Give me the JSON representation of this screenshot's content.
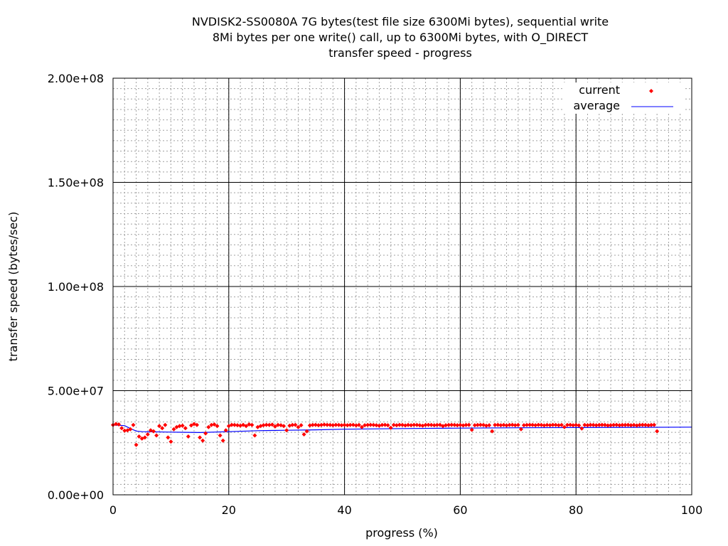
{
  "chart_data": {
    "type": "scatter",
    "title_lines": [
      "NVDISK2-SS0080A 7G bytes(test file size 6300Mi bytes), sequential write",
      "8Mi bytes per one write() call, up to 6300Mi bytes, with O_DIRECT",
      "transfer speed - progress"
    ],
    "xlabel": "progress (%)",
    "ylabel": "transfer speed (bytes/sec)",
    "xlim": [
      0,
      100
    ],
    "ylim": [
      0,
      200000000
    ],
    "x_ticks": [
      0,
      20,
      40,
      60,
      80,
      100
    ],
    "x_tick_labels": [
      "0",
      "20",
      "40",
      "60",
      "80",
      "100"
    ],
    "y_ticks": [
      0,
      50000000,
      100000000,
      150000000,
      200000000
    ],
    "y_tick_labels": [
      "0.00e+00",
      "5.00e+07",
      "1.00e+08",
      "1.50e+08",
      "2.00e+08"
    ],
    "x_minor_step": 2,
    "y_minor_step": 5000000,
    "grid": true,
    "legend_position": "top-right",
    "legend": [
      {
        "label": "current",
        "style": "points",
        "color": "#ff0000"
      },
      {
        "label": "average",
        "style": "line",
        "color": "#0000ff"
      }
    ],
    "series": [
      {
        "name": "current",
        "color": "#ff0000",
        "x_start": 0,
        "x_step": 0.5,
        "values_millions": [
          33.5,
          34,
          33.8,
          32,
          30.8,
          31,
          31.5,
          33.5,
          24,
          28,
          27,
          27.5,
          29,
          31,
          30.5,
          28.5,
          33,
          32,
          33.5,
          27.5,
          25.5,
          31.5,
          32.5,
          33,
          33.2,
          32,
          28,
          33.3,
          34,
          33.5,
          27.5,
          26,
          29.5,
          32.5,
          33.5,
          33.8,
          33,
          28.5,
          26,
          31,
          33,
          33.6,
          33.5,
          33.4,
          33.2,
          33.6,
          33,
          33.8,
          33.5,
          28.5,
          32.5,
          33,
          33.4,
          33.6,
          33.5,
          33.7,
          32.8,
          33.5,
          33.4,
          33,
          31,
          33.2,
          33.5,
          33.6,
          32.5,
          33.4,
          29,
          30.5,
          33.3,
          33.5,
          33.6,
          33.4,
          33.5,
          33.7,
          33.6,
          33.5,
          33.4,
          33.6,
          33.5,
          33.4,
          33.5,
          33.4,
          33.5,
          33.6,
          33.3,
          33.5,
          32.5,
          33.4,
          33.5,
          33.6,
          33.5,
          33.4,
          33.2,
          33.5,
          33.6,
          33.4,
          32.2,
          33.5,
          33.4,
          33.6,
          33.5,
          33.3,
          33.5,
          33.4,
          33.6,
          33.5,
          33.4,
          33.2,
          33.5,
          33.6,
          33.5,
          33.4,
          33.5,
          33.6,
          33.0,
          33.4,
          33.5,
          33.6,
          33.5,
          33.4,
          33.5,
          33.3,
          33.5,
          33.6,
          31.2,
          33.4,
          33.5,
          33.6,
          33.5,
          33.2,
          33.4,
          30.5,
          33.5,
          33.6,
          33.4,
          33.5,
          33.3,
          33.5,
          33.6,
          33.4,
          33.5,
          31.5,
          33.4,
          33.5,
          33.6,
          33.5,
          33.4,
          33.6,
          33.5,
          33.3,
          33.5,
          33.4,
          33.6,
          33.5,
          33.4,
          33.5,
          32.5,
          33.5,
          33.6,
          33.4,
          33.5,
          33.3,
          31.8,
          33.5,
          33.4,
          33.6,
          33.5,
          33.4,
          33.5,
          33.6,
          33.5,
          33.3,
          33.4,
          33.5,
          33.6,
          33.4,
          33.5,
          33.5,
          33.6,
          33.4,
          33.5,
          33.3,
          33.5,
          33.6,
          33.5,
          33.4,
          33.5,
          33.6,
          30.5
        ]
      },
      {
        "name": "average",
        "color": "#0000ff",
        "x": [
          0,
          2,
          3,
          4,
          5,
          10,
          15,
          20,
          25,
          30,
          35,
          40,
          50,
          60,
          70,
          80,
          90,
          100
        ],
        "values_millions": [
          33.5,
          33.2,
          31.8,
          30.6,
          30.3,
          30.1,
          29.9,
          30.3,
          30.8,
          31.0,
          31.2,
          31.5,
          31.8,
          32.0,
          32.2,
          32.3,
          32.4,
          32.5
        ]
      }
    ]
  }
}
